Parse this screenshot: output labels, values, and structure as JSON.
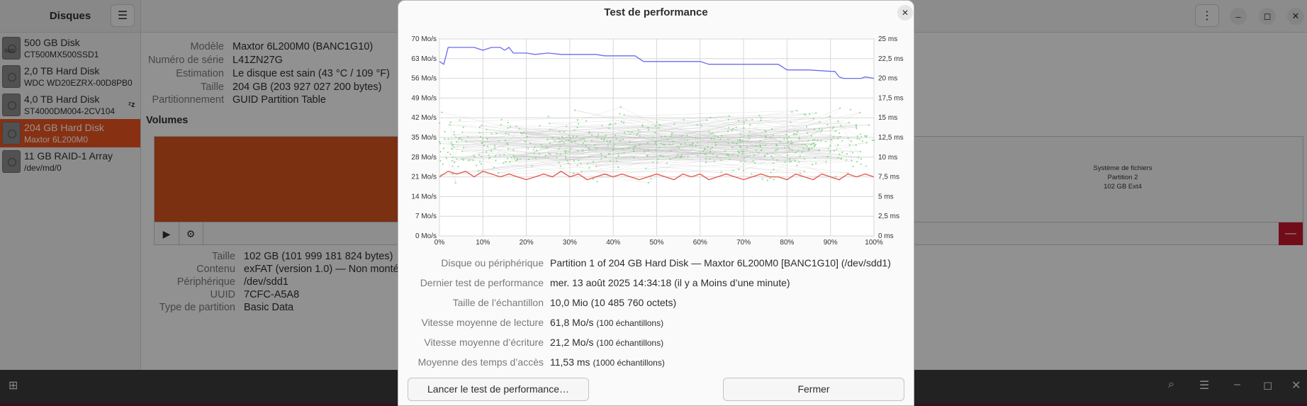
{
  "app": {
    "title": "Disques",
    "menu_icon": "hamburger-icon",
    "devices": [
      {
        "name": "500 GB Disk",
        "model": "CT500MX500SSD1",
        "badge": "SSD"
      },
      {
        "name": "2,0 TB Hard Disk",
        "model": "WDC WD20EZRX-00D8PB0"
      },
      {
        "name": "4,0 TB Hard Disk",
        "model": "ST4000DM004-2CV104",
        "state_icon": "zz"
      },
      {
        "name": "204 GB Hard Disk",
        "model": "Maxtor 6L200M0",
        "selected": true
      },
      {
        "name": "11 GB RAID-1 Array",
        "model": "/dev/md/0"
      }
    ]
  },
  "disk_info": [
    {
      "label": "Modèle",
      "value": "Maxtor 6L200M0 (BANC1G10)"
    },
    {
      "label": "Numéro de série",
      "value": "L41ZN27G"
    },
    {
      "label": "Estimation",
      "value": "Le disque est sain (43 °C / 109 °F)"
    },
    {
      "label": "Taille",
      "value": "204 GB (203 927 027 200 bytes)"
    },
    {
      "label": "Partitionnement",
      "value": "GUID Partition Table"
    }
  ],
  "volumes": {
    "title": "Volumes",
    "partition2": {
      "line1": "Système de fichiers",
      "line2": "Partition 2",
      "line3": "102 GB Ext4"
    }
  },
  "volume_info": [
    {
      "label": "Taille",
      "value": "102 GB (101 999 181 824 bytes)"
    },
    {
      "label": "Contenu",
      "value": "exFAT (version 1.0) — Non monté"
    },
    {
      "label": "Périphérique",
      "value": "/dev/sdd1"
    },
    {
      "label": "UUID",
      "value": "7CFC-A5A8"
    },
    {
      "label": "Type de partition",
      "value": "Basic Data"
    }
  ],
  "dialog": {
    "title": "Test de performance",
    "info": [
      {
        "label": "Disque ou périphérique",
        "value": "Partition 1 of 204 GB Hard Disk — Maxtor 6L200M0 [BANC1G10] (/dev/sdd1)",
        "note": ""
      },
      {
        "label": "Dernier test de performance",
        "value": "mer. 13 août 2025 14:34:18 (il y a Moins d’une minute)",
        "note": ""
      },
      {
        "label": "Taille de l’échantillon",
        "value": "10,0 Mio (10 485 760 octets)",
        "note": ""
      },
      {
        "label": "Vitesse moyenne de lecture",
        "value": "61,8 Mo/s",
        "note": "(100 échantillons)"
      },
      {
        "label": "Vitesse moyenne d’écriture",
        "value": "21,2 Mo/s",
        "note": "(100 échantillons)"
      },
      {
        "label": "Moyenne des temps d’accès",
        "value": "11,53 ms",
        "note": "(1000 échantillons)"
      }
    ],
    "start_button": "Lancer le test de performance…",
    "close_button": "Fermer"
  },
  "chart_data": {
    "type": "line",
    "x_tick_labels": [
      "0%",
      "10%",
      "20%",
      "30%",
      "40%",
      "50%",
      "60%",
      "70%",
      "80%",
      "90%",
      "100%"
    ],
    "y_left_tick_labels": [
      "0 Mo/s",
      "7 Mo/s",
      "14 Mo/s",
      "21 Mo/s",
      "28 Mo/s",
      "35 Mo/s",
      "42 Mo/s",
      "49 Mo/s",
      "56 Mo/s",
      "63 Mo/s",
      "70 Mo/s"
    ],
    "y_right_tick_labels": [
      "0 ms",
      "2,5 ms",
      "5 ms",
      "7,5 ms",
      "10 ms",
      "12,5 ms",
      "15 ms",
      "17,5 ms",
      "20 ms",
      "22,5 ms",
      "25 ms"
    ],
    "xlim": [
      0,
      100
    ],
    "ylim_left": [
      0,
      70
    ],
    "ylim_right": [
      0,
      25
    ],
    "grid": true,
    "series": [
      {
        "color": "#6b6bf0",
        "axis": "left",
        "x": [
          0,
          1,
          2,
          4,
          6,
          8,
          10,
          12,
          14,
          15,
          16,
          17,
          18,
          20,
          22,
          25,
          28,
          30,
          33,
          36,
          38,
          40,
          42,
          45,
          46,
          47,
          50,
          55,
          60,
          62,
          63,
          65,
          70,
          75,
          78,
          80,
          85,
          90,
          91,
          92,
          93,
          95,
          97,
          98,
          100
        ],
        "y": [
          62,
          61,
          67,
          67,
          67,
          67,
          66,
          67,
          67,
          66,
          67,
          65,
          65,
          65,
          64.5,
          65,
          64.5,
          64.5,
          64.5,
          64.5,
          64,
          64,
          64,
          64,
          63,
          62,
          62,
          62,
          62,
          61,
          61,
          61,
          61,
          61,
          61,
          59,
          59,
          58.5,
          58.5,
          56.5,
          56,
          56,
          56,
          56.5,
          56
        ]
      },
      {
        "color": "#e5554a",
        "axis": "left",
        "x": [
          0,
          2,
          4,
          6,
          8,
          10,
          12,
          14,
          16,
          18,
          20,
          22,
          24,
          26,
          28,
          30,
          32,
          34,
          36,
          38,
          40,
          42,
          44,
          46,
          48,
          50,
          52,
          54,
          56,
          58,
          60,
          62,
          64,
          66,
          68,
          70,
          72,
          74,
          76,
          78,
          80,
          82,
          84,
          86,
          88,
          90,
          92,
          94,
          96,
          98,
          100
        ],
        "y": [
          21,
          23,
          22,
          23,
          21,
          23,
          22,
          21,
          22,
          21,
          20,
          21,
          22,
          21,
          23,
          21,
          22,
          20,
          21,
          22,
          21,
          22,
          21,
          20,
          21,
          22,
          21,
          20,
          22,
          21,
          22,
          20,
          21,
          22,
          21,
          20,
          21,
          22,
          21,
          21,
          20,
          22,
          21,
          20,
          22,
          21,
          20,
          22,
          21,
          22,
          21
        ]
      },
      {
        "color": "#7ad57a",
        "axis": "right",
        "style": "scatter-with-lines",
        "description": "1000 access time samples between about 4 ms and 18 ms, dense around 10–14 ms"
      }
    ]
  }
}
